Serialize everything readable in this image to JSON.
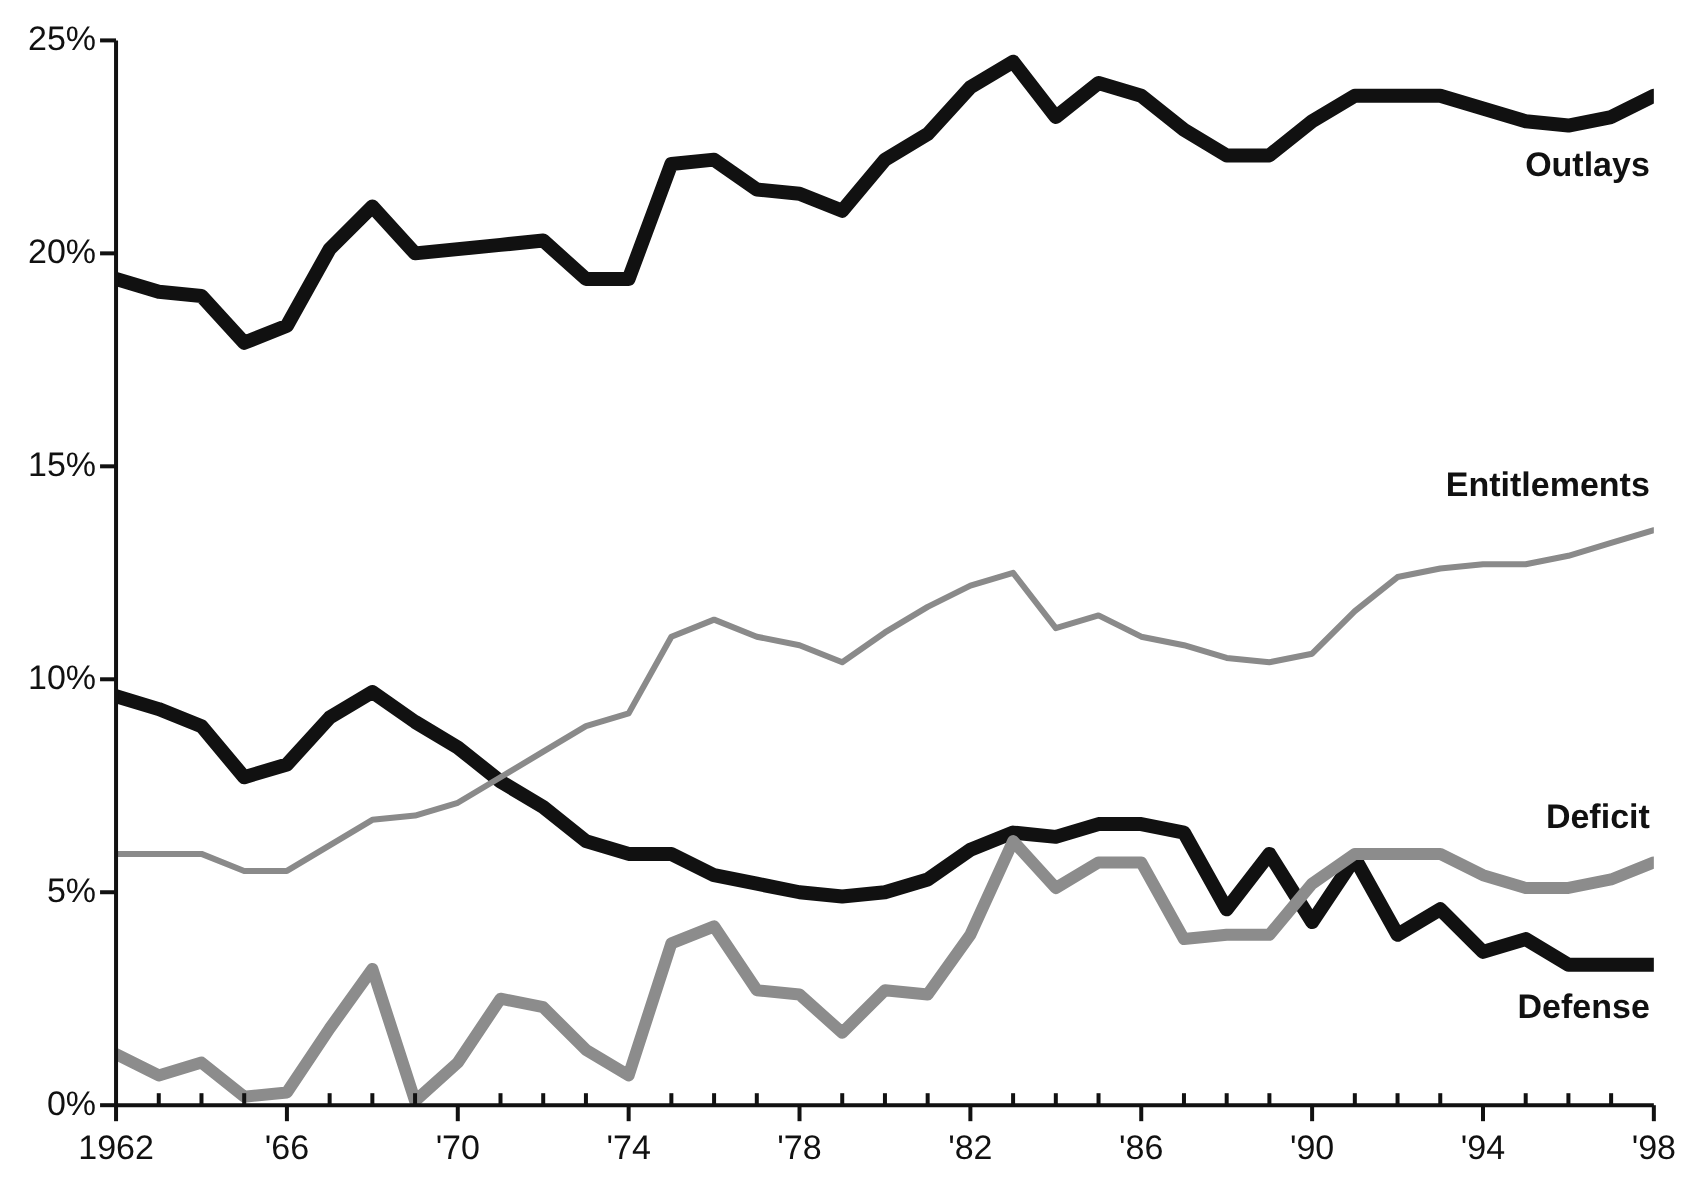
{
  "chart_data": {
    "type": "line",
    "x": [
      1962,
      1963,
      1964,
      1965,
      1966,
      1967,
      1968,
      1969,
      1970,
      1971,
      1972,
      1973,
      1974,
      1975,
      1976,
      1977,
      1978,
      1979,
      1980,
      1981,
      1982,
      1983,
      1984,
      1985,
      1986,
      1987,
      1988,
      1989,
      1990,
      1991,
      1992,
      1993,
      1994,
      1995,
      1996,
      1997,
      1998
    ],
    "series": [
      {
        "name": "Outlays",
        "color": "#111111",
        "values": [
          19.4,
          19.1,
          19.0,
          17.9,
          18.3,
          20.1,
          21.1,
          20.0,
          20.1,
          20.2,
          20.3,
          19.4,
          19.4,
          22.1,
          22.2,
          21.5,
          21.4,
          21.0,
          22.2,
          22.8,
          23.9,
          24.5,
          23.2,
          24.0,
          23.7,
          22.9,
          22.3,
          22.3,
          23.1,
          23.7,
          23.7,
          23.7,
          23.4,
          23.1,
          23.0,
          23.2,
          23.7
        ]
      },
      {
        "name": "Entitlements",
        "color": "#8a8a8a",
        "values": [
          5.9,
          5.9,
          5.9,
          5.5,
          5.5,
          6.1,
          6.7,
          6.8,
          7.1,
          7.7,
          8.3,
          8.9,
          9.2,
          11.0,
          11.4,
          11.0,
          10.8,
          10.4,
          11.1,
          11.7,
          12.2,
          12.5,
          11.2,
          11.5,
          11.0,
          10.8,
          10.5,
          10.4,
          10.6,
          11.6,
          12.4,
          12.6,
          12.7,
          12.7,
          12.9,
          13.2,
          13.5
        ]
      },
      {
        "name": "Deficit",
        "color": "#8c8c8c",
        "values": [
          1.2,
          0.7,
          1.0,
          0.2,
          0.3,
          1.8,
          3.2,
          0.1,
          1.0,
          2.5,
          2.3,
          1.3,
          0.7,
          3.8,
          4.2,
          2.7,
          2.6,
          1.7,
          2.7,
          2.6,
          4.0,
          6.2,
          5.1,
          5.7,
          5.7,
          3.9,
          4.0,
          4.0,
          5.2,
          5.9,
          5.9,
          5.9,
          5.4,
          5.1,
          5.1,
          5.3,
          5.7
        ]
      },
      {
        "name": "Defense",
        "color": "#111111",
        "values": [
          9.6,
          9.3,
          8.9,
          7.7,
          8.0,
          9.1,
          9.7,
          9.0,
          8.4,
          7.6,
          7.0,
          6.2,
          5.9,
          5.9,
          5.4,
          5.2,
          5.0,
          4.9,
          5.0,
          5.3,
          6.0,
          6.4,
          6.3,
          6.6,
          6.6,
          6.4,
          4.6,
          5.9,
          4.3,
          5.8,
          4.0,
          4.6,
          3.6,
          3.9,
          3.3,
          3.3,
          3.3
        ]
      }
    ],
    "xlim": [
      1962,
      1998
    ],
    "xticks": [
      {
        "value": 1962,
        "label": "1962"
      },
      {
        "value": 1963,
        "label": null
      },
      {
        "value": 1964,
        "label": null
      },
      {
        "value": 1965,
        "label": null
      },
      {
        "value": 1966,
        "label": "'66"
      },
      {
        "value": 1967,
        "label": null
      },
      {
        "value": 1968,
        "label": null
      },
      {
        "value": 1969,
        "label": null
      },
      {
        "value": 1970,
        "label": "'70"
      },
      {
        "value": 1971,
        "label": null
      },
      {
        "value": 1972,
        "label": null
      },
      {
        "value": 1973,
        "label": null
      },
      {
        "value": 1974,
        "label": "'74"
      },
      {
        "value": 1975,
        "label": null
      },
      {
        "value": 1976,
        "label": null
      },
      {
        "value": 1977,
        "label": null
      },
      {
        "value": 1978,
        "label": "'78"
      },
      {
        "value": 1979,
        "label": null
      },
      {
        "value": 1980,
        "label": null
      },
      {
        "value": 1981,
        "label": null
      },
      {
        "value": 1982,
        "label": "'82"
      },
      {
        "value": 1983,
        "label": null
      },
      {
        "value": 1984,
        "label": null
      },
      {
        "value": 1985,
        "label": null
      },
      {
        "value": 1986,
        "label": "'86"
      },
      {
        "value": 1987,
        "label": null
      },
      {
        "value": 1988,
        "label": null
      },
      {
        "value": 1989,
        "label": null
      },
      {
        "value": 1990,
        "label": "'90"
      },
      {
        "value": 1991,
        "label": null
      },
      {
        "value": 1992,
        "label": null
      },
      {
        "value": 1993,
        "label": null
      },
      {
        "value": 1994,
        "label": "'94"
      },
      {
        "value": 1995,
        "label": null
      },
      {
        "value": 1996,
        "label": null
      },
      {
        "value": 1997,
        "label": null
      },
      {
        "value": 1998,
        "label": "'98"
      }
    ],
    "ylim": [
      0,
      25
    ],
    "yticks": [
      {
        "value": 0,
        "label": "0%"
      },
      {
        "value": 5,
        "label": "5%"
      },
      {
        "value": 10,
        "label": "10%"
      },
      {
        "value": 15,
        "label": "15%"
      },
      {
        "value": 20,
        "label": "20%"
      },
      {
        "value": 25,
        "label": "25%"
      }
    ],
    "grid": false,
    "legend": false,
    "marker": "none",
    "line_style": "solid"
  }
}
